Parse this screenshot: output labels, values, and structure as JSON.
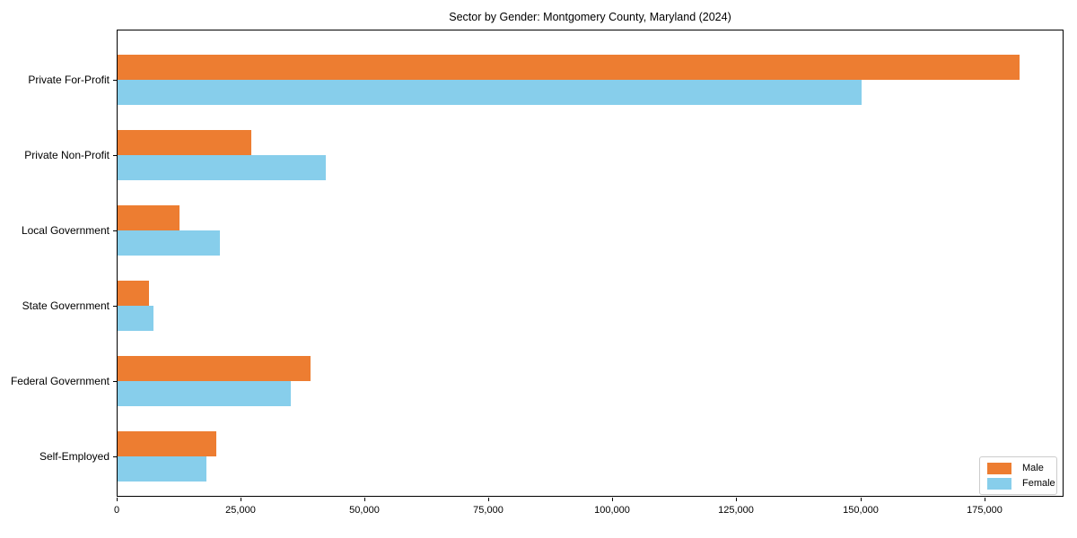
{
  "chart_data": {
    "type": "bar",
    "orientation": "horizontal",
    "title": "Sector by Gender: Montgomery County, Maryland (2024)",
    "categories": [
      "Private For-Profit",
      "Private Non-Profit",
      "Local Government",
      "State Government",
      "Federal Government",
      "Self-Employed"
    ],
    "categories_order": "top-to-bottom",
    "series": [
      {
        "name": "Male",
        "color": "#ed7d31",
        "values": [
          182000,
          27000,
          12500,
          6400,
          39000,
          20000
        ]
      },
      {
        "name": "Female",
        "color": "#87ceeb",
        "values": [
          150000,
          42000,
          20700,
          7200,
          35000,
          18000
        ]
      }
    ],
    "xlabel": "",
    "ylabel": "",
    "xlim": [
      0,
      191000
    ],
    "x_ticks": [
      {
        "value": 0,
        "label": "0"
      },
      {
        "value": 25000,
        "label": "25,000"
      },
      {
        "value": 50000,
        "label": "50,000"
      },
      {
        "value": 75000,
        "label": "75,000"
      },
      {
        "value": 100000,
        "label": "100,000"
      },
      {
        "value": 125000,
        "label": "125,000"
      },
      {
        "value": 150000,
        "label": "150,000"
      },
      {
        "value": 175000,
        "label": "175,000"
      }
    ],
    "grid": false,
    "legend": {
      "position": "lower-right",
      "entries": [
        "Male",
        "Female"
      ]
    }
  },
  "colors": {
    "background": "#ffffff",
    "spine": "#000000",
    "text": "#000000",
    "legend_border": "#cccccc",
    "male": "#ed7d31",
    "female": "#87ceeb"
  }
}
